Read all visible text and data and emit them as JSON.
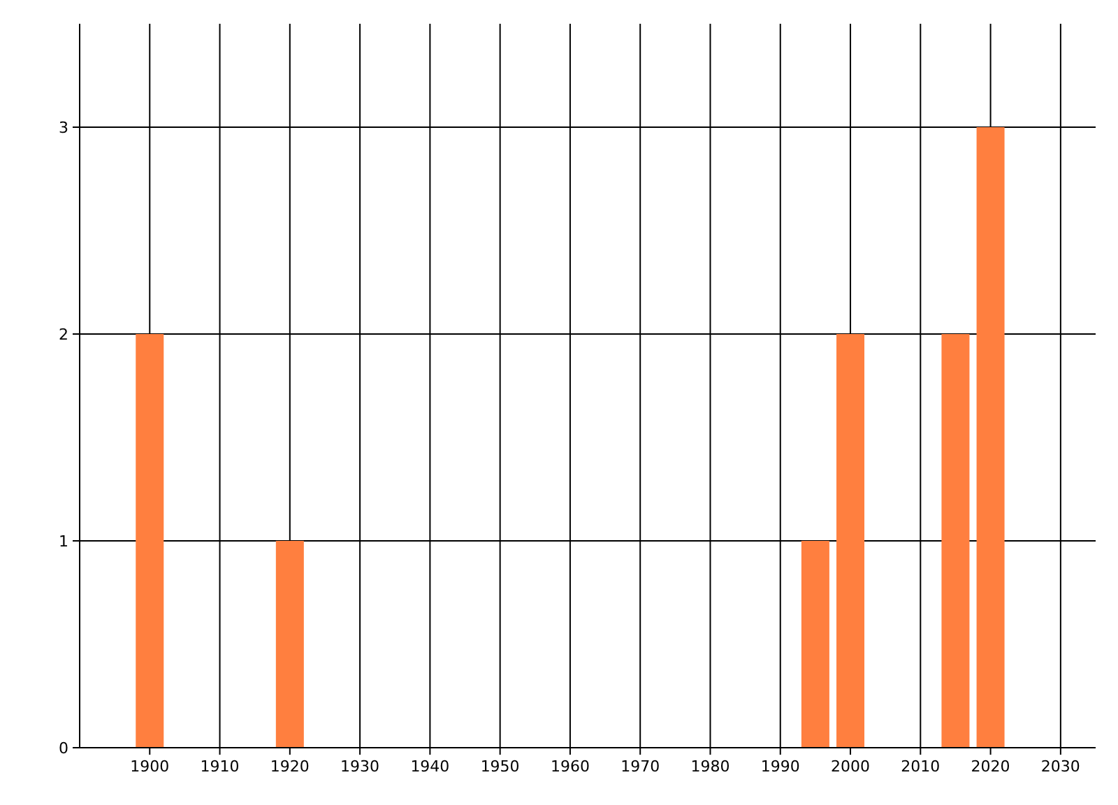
{
  "chart_data": {
    "type": "bar",
    "x": [
      1900,
      1920,
      1995,
      2000,
      2015,
      2020
    ],
    "values": [
      2,
      1,
      1,
      2,
      2,
      3
    ],
    "color": "#ff7f3f",
    "xlim": [
      1890,
      2035
    ],
    "xticks": [
      1900,
      1910,
      1920,
      1930,
      1940,
      1950,
      1960,
      1970,
      1980,
      1990,
      2000,
      2010,
      2020,
      2030
    ],
    "ylim": [
      0,
      3.5
    ],
    "yticks": [
      0,
      1,
      2,
      3
    ],
    "grid": true
  }
}
